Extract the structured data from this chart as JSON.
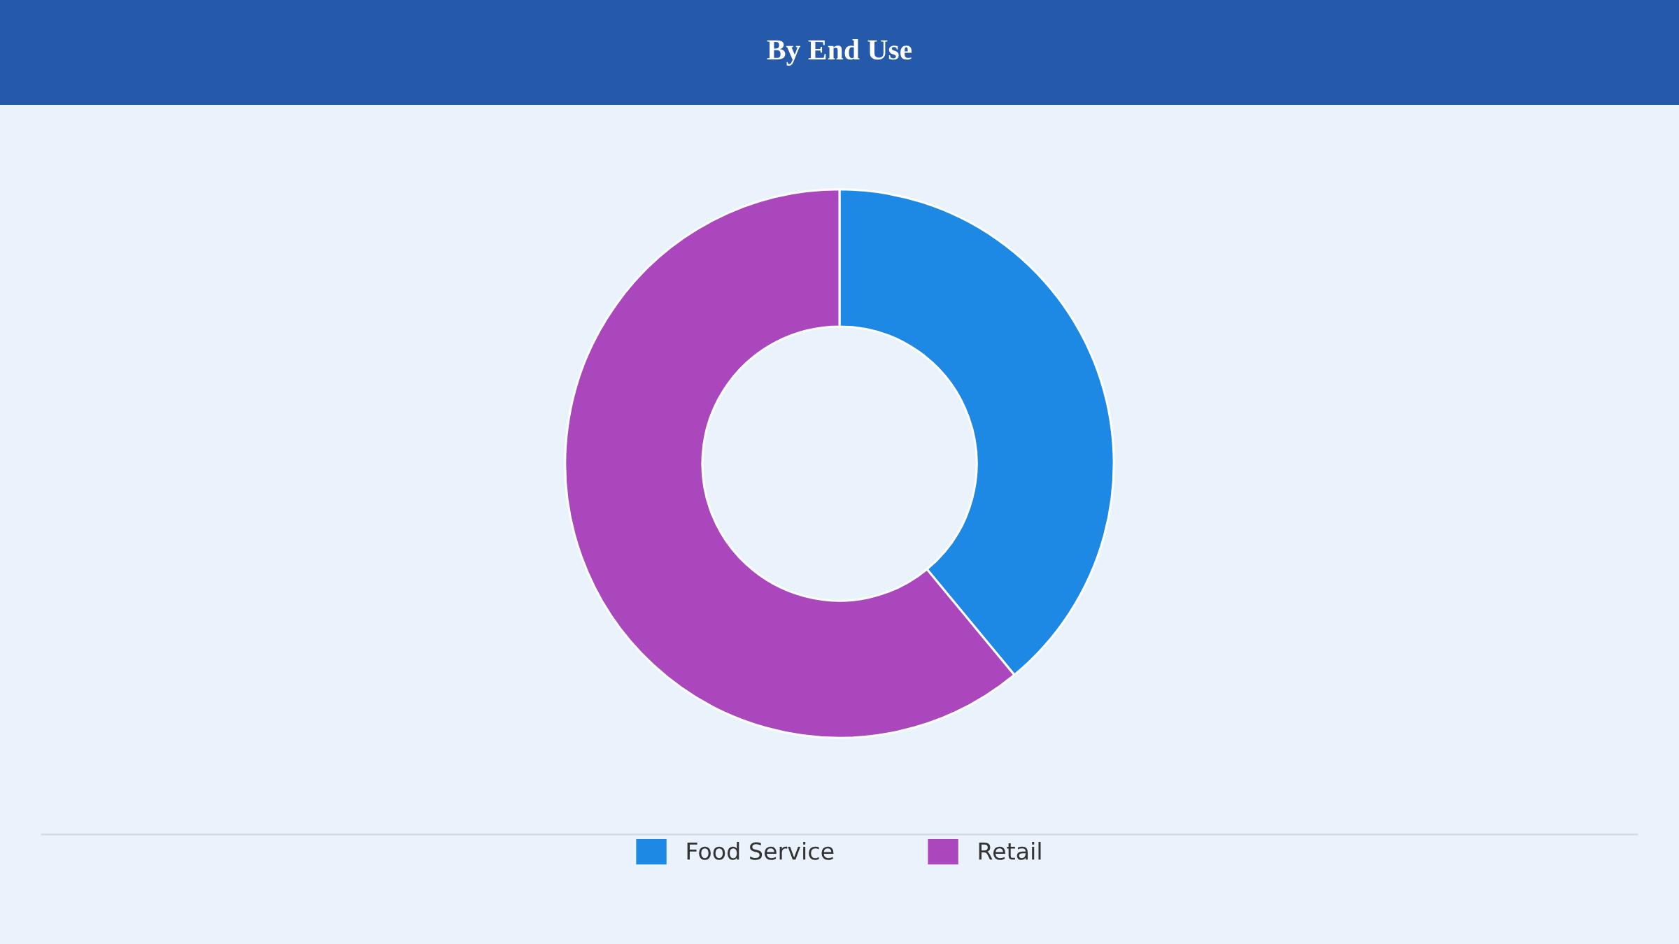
{
  "chart_data": {
    "type": "donut",
    "title": "By End Use",
    "categories": [
      "Food Service",
      "Retail"
    ],
    "values": [
      39,
      61
    ],
    "colors": [
      "#1e88e5",
      "#ab47bc"
    ],
    "legend": "bottom"
  }
}
